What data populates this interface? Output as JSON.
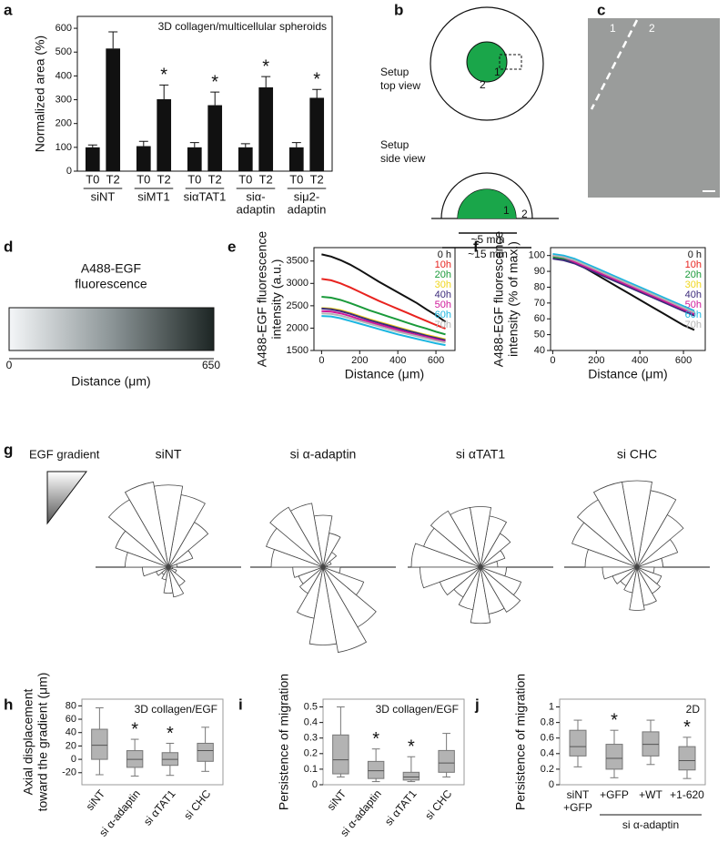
{
  "chart_data": [
    {
      "type": "bar",
      "panel": "a",
      "annotation": "3D collagen/multicellular spheroids",
      "ylabel": [
        "Normalized area (%)"
      ],
      "categories": [
        "T0",
        "T2",
        "T0",
        "T2",
        "T0",
        "T2",
        "T0",
        "T2",
        "T0",
        "T2"
      ],
      "group_labels": [
        [
          "siNT"
        ],
        [
          "siMT1"
        ],
        [
          "siαTAT1"
        ],
        [
          "siα-",
          "adaptin"
        ],
        [
          "siμ2-",
          "adaptin"
        ]
      ],
      "values": [
        100,
        515,
        105,
        302,
        100,
        277,
        100,
        352,
        100,
        308
      ],
      "errors": [
        10,
        70,
        20,
        60,
        20,
        55,
        15,
        45,
        20,
        35
      ],
      "significant": [
        false,
        false,
        false,
        true,
        false,
        true,
        false,
        true,
        false,
        true
      ],
      "significance_label": "*",
      "color": "#111111",
      "ylim": [
        0,
        650
      ],
      "yticks": [
        0,
        100,
        200,
        300,
        400,
        500,
        600
      ]
    },
    {
      "type": "line",
      "panel": "e",
      "ylabel": [
        "A488-EGF fluorescence",
        "intensity (a.u.)"
      ],
      "xlabel": "Distance (μm)",
      "x": [
        0,
        50,
        100,
        150,
        200,
        250,
        300,
        350,
        400,
        450,
        500,
        550,
        600,
        650
      ],
      "xlim": [
        -40,
        700
      ],
      "xticks": [
        0,
        200,
        400,
        600
      ],
      "ylim": [
        1500,
        3800
      ],
      "yticks": [
        1500,
        2000,
        2500,
        3000,
        3500
      ],
      "series": [
        {
          "name": "0 h",
          "color": "#111111",
          "values": [
            3650,
            3600,
            3520,
            3420,
            3300,
            3170,
            3040,
            2920,
            2800,
            2680,
            2560,
            2420,
            2290,
            2140
          ]
        },
        {
          "name": "10h",
          "color": "#e8231f",
          "values": [
            3100,
            3070,
            3000,
            2910,
            2810,
            2710,
            2610,
            2520,
            2430,
            2340,
            2250,
            2160,
            2070,
            1990
          ]
        },
        {
          "name": "20h",
          "color": "#1a9a3a",
          "values": [
            2700,
            2680,
            2630,
            2560,
            2480,
            2400,
            2330,
            2260,
            2190,
            2120,
            2050,
            1990,
            1920,
            1860
          ]
        },
        {
          "name": "30h",
          "color": "#f0d61c",
          "values": [
            2450,
            2440,
            2400,
            2340,
            2270,
            2200,
            2140,
            2080,
            2020,
            1960,
            1900,
            1850,
            1800,
            1750
          ]
        },
        {
          "name": "40h",
          "color": "#3b2a7a",
          "values": [
            2440,
            2420,
            2380,
            2320,
            2250,
            2180,
            2120,
            2060,
            2000,
            1940,
            1890,
            1830,
            1780,
            1730
          ]
        },
        {
          "name": "50h",
          "color": "#d0189a",
          "values": [
            2380,
            2370,
            2330,
            2270,
            2200,
            2140,
            2080,
            2020,
            1960,
            1900,
            1850,
            1800,
            1750,
            1700
          ]
        },
        {
          "name": "60h",
          "color": "#1bb6e0",
          "values": [
            2270,
            2260,
            2220,
            2160,
            2100,
            2040,
            1980,
            1920,
            1860,
            1810,
            1760,
            1710,
            1660,
            1620
          ]
        },
        {
          "name": "70h",
          "color": "#b4b4b4",
          "values": [
            2330,
            2320,
            2280,
            2220,
            2160,
            2100,
            2040,
            1980,
            1920,
            1870,
            1820,
            1770,
            1720,
            1680
          ]
        }
      ]
    },
    {
      "type": "line",
      "panel": "f",
      "ylabel": [
        "A488-EGF fluorescence",
        "intensity (% of max.)"
      ],
      "xlabel": "Distance (μm)",
      "x": [
        0,
        50,
        100,
        150,
        200,
        250,
        300,
        350,
        400,
        450,
        500,
        550,
        600,
        650
      ],
      "xlim": [
        -10,
        700
      ],
      "xticks": [
        0,
        200,
        400,
        600
      ],
      "ylim": [
        40,
        105
      ],
      "yticks": [
        40,
        50,
        60,
        70,
        80,
        90,
        100
      ],
      "series": [
        {
          "name": "0 h",
          "color": "#111111",
          "values": [
            100,
            99,
            96,
            92,
            88,
            84,
            80,
            76,
            72,
            68,
            64,
            60,
            56,
            53
          ]
        },
        {
          "name": "10h",
          "color": "#e8231f",
          "values": [
            100,
            99,
            97,
            94,
            91,
            88,
            85,
            82,
            79,
            76,
            73,
            70,
            67,
            64
          ]
        },
        {
          "name": "20h",
          "color": "#1a9a3a",
          "values": [
            99,
            98,
            96,
            93,
            90,
            87,
            84,
            81,
            78,
            75,
            72,
            69,
            66,
            63
          ]
        },
        {
          "name": "30h",
          "color": "#f0d61c",
          "values": [
            100,
            99,
            97,
            94,
            91,
            88,
            85,
            82,
            79,
            76,
            73,
            70,
            67,
            64
          ]
        },
        {
          "name": "40h",
          "color": "#3b2a7a",
          "values": [
            98,
            97,
            95,
            92,
            89,
            86,
            83,
            80,
            77,
            74,
            71,
            68,
            65,
            62
          ]
        },
        {
          "name": "50h",
          "color": "#d0189a",
          "values": [
            100,
            99,
            96,
            93,
            90,
            87,
            84,
            81,
            78,
            75,
            72,
            69,
            66,
            63
          ]
        },
        {
          "name": "60h",
          "color": "#1bb6e0",
          "values": [
            101,
            100,
            98,
            95,
            92,
            89,
            86,
            83,
            80,
            77,
            74,
            71,
            68,
            65
          ]
        },
        {
          "name": "70h",
          "color": "#b4b4b4",
          "values": [
            100,
            99,
            97,
            94,
            91,
            88,
            85,
            82,
            79,
            76,
            73,
            70,
            67,
            64
          ]
        }
      ]
    },
    {
      "type": "rose",
      "panel": "g",
      "legend_label": "EGF gradient",
      "plots": [
        {
          "title": "siNT",
          "values": [
            0.1,
            0.3,
            0.6,
            0.85,
            0.95,
            1.0,
            0.9,
            0.65,
            0.5,
            0.3,
            0.15,
            0.1,
            0.15,
            0.3,
            0.35,
            0.25,
            0.1,
            0.05
          ]
        },
        {
          "title": "si α-adaptin",
          "values": [
            0.05,
            0.1,
            0.2,
            0.4,
            0.6,
            0.75,
            0.8,
            0.7,
            0.6,
            0.35,
            0.3,
            0.35,
            0.6,
            0.9,
            1.0,
            0.8,
            0.5,
            0.2
          ]
        },
        {
          "title": "si αTAT1",
          "values": [
            0.2,
            0.3,
            0.45,
            0.6,
            0.7,
            0.7,
            0.75,
            0.7,
            0.8,
            0.7,
            0.5,
            0.4,
            0.5,
            0.65,
            0.55,
            0.6,
            0.5,
            0.3
          ]
        },
        {
          "title": "si CHC",
          "values": [
            0.3,
            0.5,
            0.7,
            0.9,
            1.0,
            1.0,
            0.9,
            0.8,
            0.6,
            0.4,
            0.3,
            0.25,
            0.3,
            0.5,
            0.45,
            0.35,
            0.3,
            0.2
          ]
        }
      ]
    },
    {
      "type": "box",
      "panel": "h",
      "annotation": "3D collagen/EGF",
      "ylabel": [
        "Axial displacement",
        "toward the gradient (μm)"
      ],
      "categories": [
        "siNT",
        "si α-adaptin",
        "si αTAT1",
        "si CHC"
      ],
      "rotate_labels": true,
      "boxes": [
        {
          "whislo": -23,
          "q1": 0,
          "med": 21,
          "q3": 45,
          "whishi": 77
        },
        {
          "whislo": -25,
          "q1": -12,
          "med": 0,
          "q3": 13,
          "whishi": 30
        },
        {
          "whislo": -24,
          "q1": -9,
          "med": 0,
          "q3": 10,
          "whishi": 24
        },
        {
          "whislo": -18,
          "q1": -3,
          "med": 13,
          "q3": 24,
          "whishi": 48
        }
      ],
      "significant": [
        false,
        true,
        true,
        false
      ],
      "significance_label": "*",
      "color": "#b3b3b3",
      "ylim": [
        -38,
        90
      ],
      "yticks": [
        -20,
        0,
        20,
        40,
        60,
        80
      ]
    },
    {
      "type": "box",
      "panel": "i",
      "annotation": "3D collagen/EGF",
      "ylabel": [
        "Persistence of migration"
      ],
      "categories": [
        "siNT",
        "si α-adaptin",
        "si αTAT1",
        "si CHC"
      ],
      "rotate_labels": true,
      "boxes": [
        {
          "whislo": 0.05,
          "q1": 0.07,
          "med": 0.16,
          "q3": 0.32,
          "whishi": 0.5
        },
        {
          "whislo": 0.02,
          "q1": 0.04,
          "med": 0.09,
          "q3": 0.15,
          "whishi": 0.23
        },
        {
          "whislo": 0.02,
          "q1": 0.03,
          "med": 0.05,
          "q3": 0.08,
          "whishi": 0.18
        },
        {
          "whislo": 0.05,
          "q1": 0.08,
          "med": 0.14,
          "q3": 0.22,
          "whishi": 0.33
        }
      ],
      "significant": [
        false,
        true,
        true,
        false
      ],
      "significance_label": "*",
      "color": "#b3b3b3",
      "ylim": [
        0,
        0.55
      ],
      "yticks": [
        0,
        0.1,
        0.2,
        0.3,
        0.4,
        0.5
      ]
    },
    {
      "type": "box",
      "panel": "j",
      "annotation": "2D",
      "ylabel": [
        "Persistence of migration"
      ],
      "categories": [
        [
          "siNT",
          "+GFP"
        ],
        [
          "+GFP"
        ],
        [
          "+WT"
        ],
        [
          "+1-620"
        ]
      ],
      "rotate_labels": false,
      "group_label": "si α-adaptin",
      "grouped": [
        false,
        true,
        true,
        true
      ],
      "boxes": [
        {
          "whislo": 0.23,
          "q1": 0.37,
          "med": 0.49,
          "q3": 0.7,
          "whishi": 0.83
        },
        {
          "whislo": 0.09,
          "q1": 0.2,
          "med": 0.34,
          "q3": 0.52,
          "whishi": 0.7
        },
        {
          "whislo": 0.26,
          "q1": 0.37,
          "med": 0.52,
          "q3": 0.68,
          "whishi": 0.83
        },
        {
          "whislo": 0.08,
          "q1": 0.19,
          "med": 0.31,
          "q3": 0.49,
          "whishi": 0.61
        }
      ],
      "significant": [
        false,
        true,
        false,
        true
      ],
      "significance_label": "*",
      "color": "#b3b3b3",
      "ylim": [
        0,
        1.1
      ],
      "yticks": [
        0,
        0.2,
        0.4,
        0.6,
        0.8,
        1
      ]
    }
  ],
  "diagram_b": {
    "panel": "b",
    "top_view": [
      "Setup",
      "top view"
    ],
    "side_view": [
      "Setup",
      "side view"
    ],
    "zone_1": "1",
    "zone_2": "2",
    "inner": "~5 mm",
    "outer": "~15 mm"
  },
  "image_c": {
    "panel": "c",
    "zone_1": "1",
    "zone_2": "2"
  },
  "gradient_d": {
    "panel": "d",
    "title": [
      "A488-EGF",
      "fluorescence"
    ],
    "start": "0",
    "end": "650",
    "xlabel": "Distance (μm)"
  }
}
